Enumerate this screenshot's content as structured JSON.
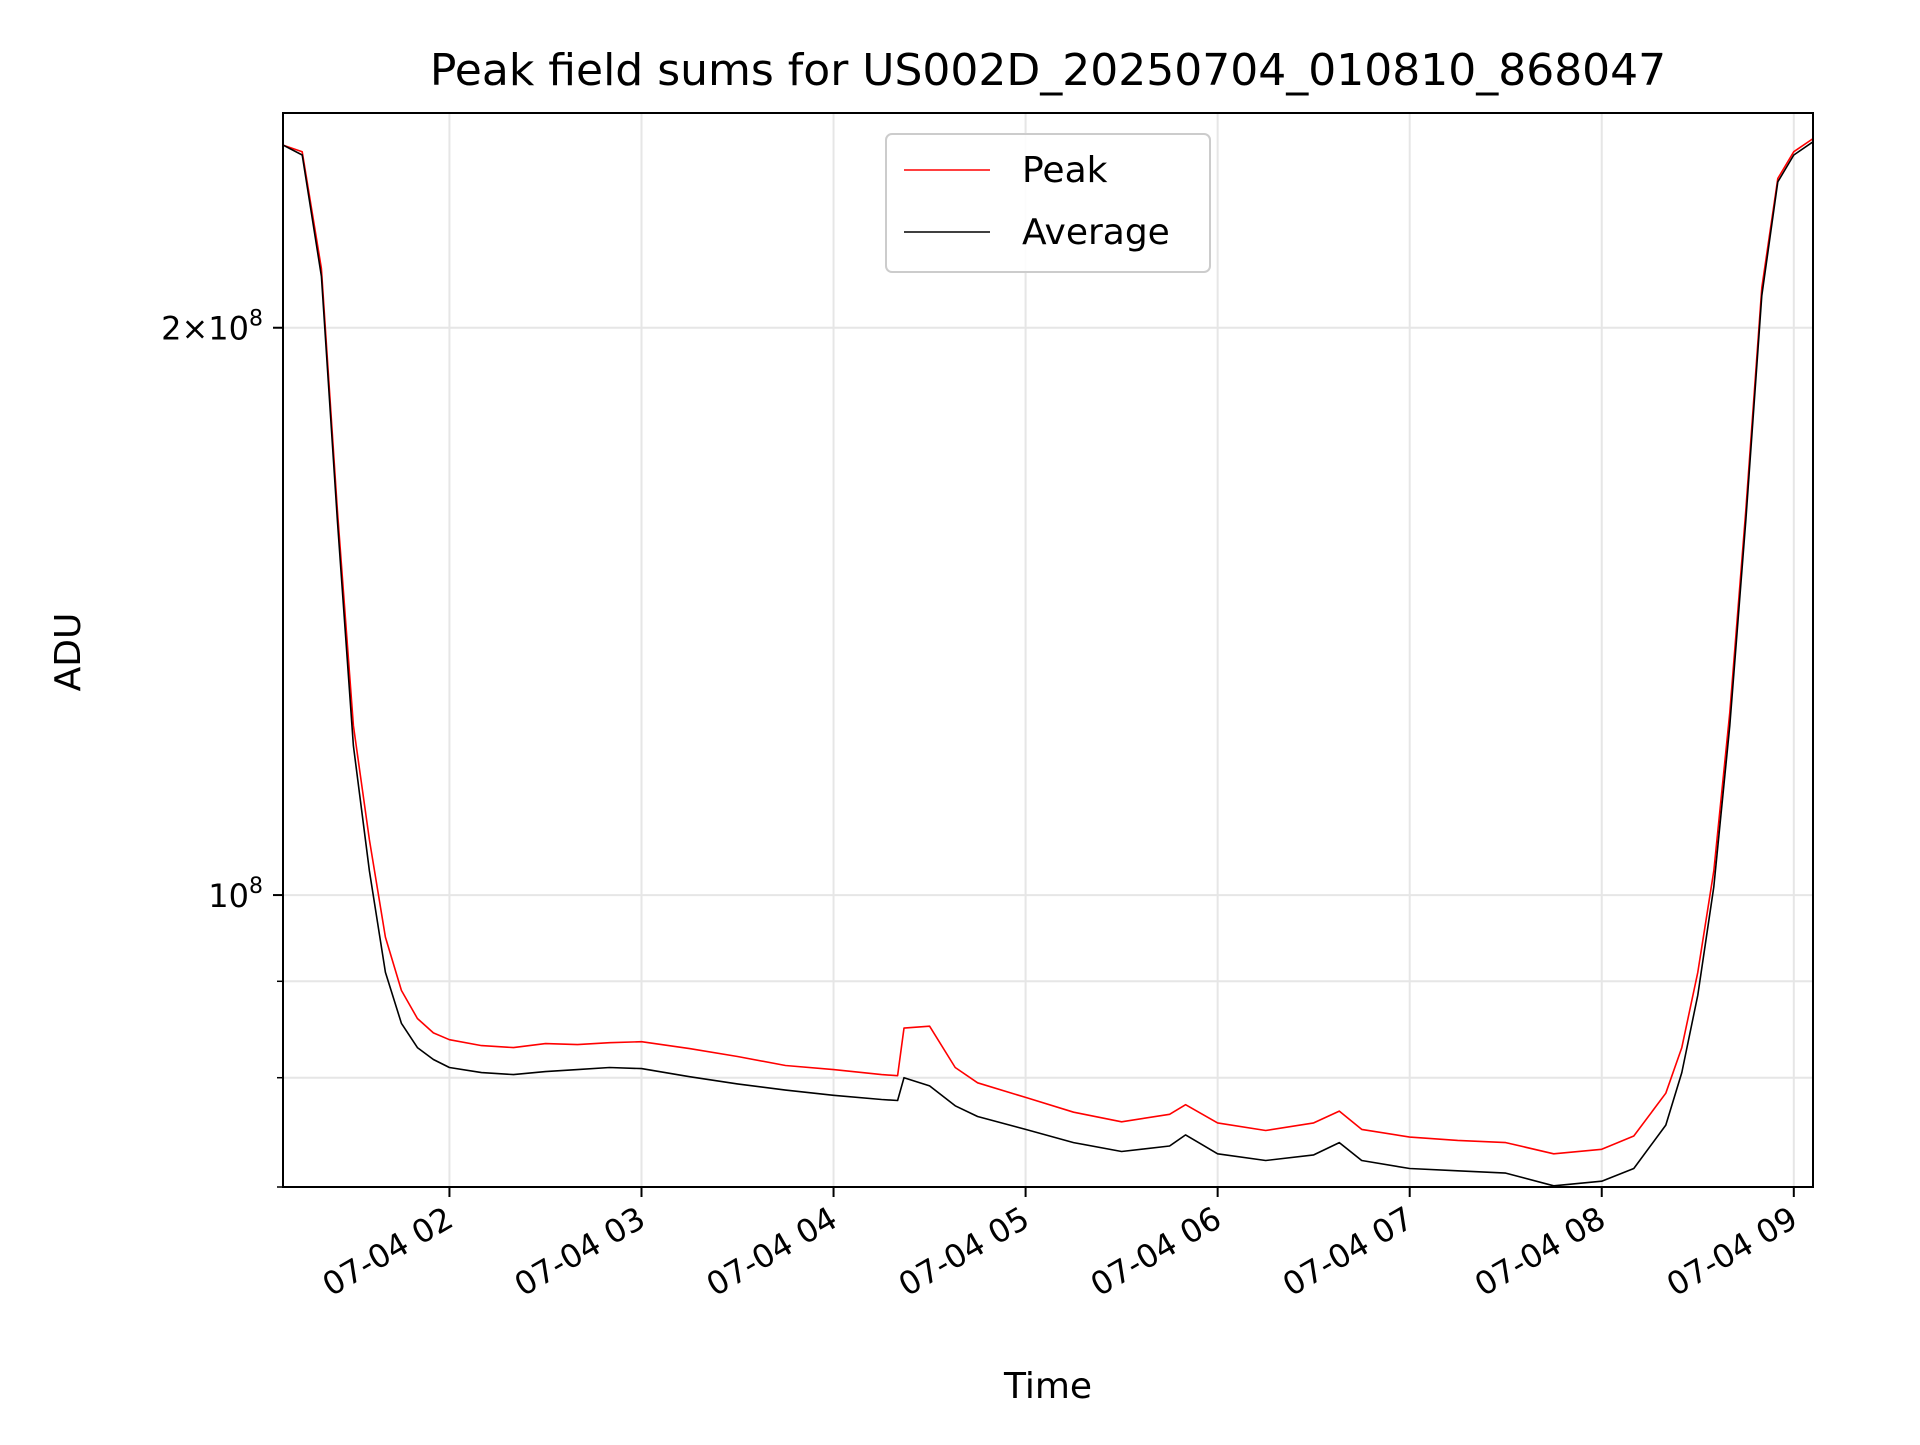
{
  "chart_data": {
    "type": "line",
    "title": "Peak field sums for US002D_20250704_010810_868047",
    "xlabel": "Time",
    "ylabel": "ADU",
    "y_scale": "log",
    "xlim": [
      "07-04 01:08",
      "07-04 09:06"
    ],
    "ylim": [
      70000000,
      260000000
    ],
    "x_ticks": [
      "07-04 02",
      "07-04 03",
      "07-04 04",
      "07-04 05",
      "07-04 06",
      "07-04 07",
      "07-04 08",
      "07-04 09"
    ],
    "y_major_ticks": [
      {
        "value": 100000000,
        "mantissa": "",
        "exponent": "8"
      },
      {
        "value": 200000000,
        "mantissa": "2×",
        "exponent": "8"
      }
    ],
    "grid": true,
    "legend": {
      "position": "top-center",
      "entries": [
        "Peak",
        "Average"
      ]
    },
    "series": [
      {
        "name": "Peak",
        "color": "#ff0000",
        "x": [
          "07-04 01:08",
          "07-04 01:14",
          "07-04 01:20",
          "07-04 01:25",
          "07-04 01:30",
          "07-04 01:35",
          "07-04 01:40",
          "07-04 01:45",
          "07-04 01:50",
          "07-04 01:55",
          "07-04 02:00",
          "07-04 02:10",
          "07-04 02:20",
          "07-04 02:30",
          "07-04 02:40",
          "07-04 02:50",
          "07-04 03:00",
          "07-04 03:15",
          "07-04 03:30",
          "07-04 03:45",
          "07-04 04:00",
          "07-04 04:15",
          "07-04 04:20",
          "07-04 04:22",
          "07-04 04:30",
          "07-04 04:38",
          "07-04 04:45",
          "07-04 05:00",
          "07-04 05:15",
          "07-04 05:30",
          "07-04 05:45",
          "07-04 05:50",
          "07-04 06:00",
          "07-04 06:15",
          "07-04 06:30",
          "07-04 06:38",
          "07-04 06:45",
          "07-04 07:00",
          "07-04 07:15",
          "07-04 07:30",
          "07-04 07:45",
          "07-04 08:00",
          "07-04 08:10",
          "07-04 08:20",
          "07-04 08:25",
          "07-04 08:30",
          "07-04 08:35",
          "07-04 08:40",
          "07-04 08:45",
          "07-04 08:50",
          "07-04 08:55",
          "07-04 09:00",
          "07-04 09:06"
        ],
        "y": [
          250000000,
          248000000,
          215000000,
          160000000,
          123000000,
          107000000,
          95000000,
          89000000,
          86000000,
          84500000,
          83800000,
          83200000,
          83000000,
          83400000,
          83300000,
          83500000,
          83600000,
          82900000,
          82100000,
          81200000,
          80800000,
          80300000,
          80200000,
          85000000,
          85200000,
          81000000,
          79500000,
          78100000,
          76700000,
          75800000,
          76500000,
          77400000,
          75700000,
          75000000,
          75700000,
          76800000,
          75100000,
          74400000,
          74100000,
          73900000,
          72900000,
          73300000,
          74500000,
          78500000,
          83000000,
          91000000,
          103000000,
          125000000,
          160000000,
          210000000,
          240000000,
          248000000,
          252000000
        ]
      },
      {
        "name": "Average",
        "color": "#000000",
        "x": [
          "07-04 01:08",
          "07-04 01:14",
          "07-04 01:20",
          "07-04 01:25",
          "07-04 01:30",
          "07-04 01:35",
          "07-04 01:40",
          "07-04 01:45",
          "07-04 01:50",
          "07-04 01:55",
          "07-04 02:00",
          "07-04 02:10",
          "07-04 02:20",
          "07-04 02:30",
          "07-04 02:40",
          "07-04 02:50",
          "07-04 03:00",
          "07-04 03:15",
          "07-04 03:30",
          "07-04 03:45",
          "07-04 04:00",
          "07-04 04:15",
          "07-04 04:20",
          "07-04 04:22",
          "07-04 04:30",
          "07-04 04:38",
          "07-04 04:45",
          "07-04 05:00",
          "07-04 05:15",
          "07-04 05:30",
          "07-04 05:45",
          "07-04 05:50",
          "07-04 06:00",
          "07-04 06:15",
          "07-04 06:30",
          "07-04 06:38",
          "07-04 06:45",
          "07-04 07:00",
          "07-04 07:15",
          "07-04 07:30",
          "07-04 07:45",
          "07-04 08:00",
          "07-04 08:10",
          "07-04 08:20",
          "07-04 08:25",
          "07-04 08:30",
          "07-04 08:35",
          "07-04 08:40",
          "07-04 08:45",
          "07-04 08:50",
          "07-04 08:55",
          "07-04 09:00",
          "07-04 09:06"
        ],
        "y": [
          250000000,
          247000000,
          213000000,
          158000000,
          120000000,
          103000000,
          91000000,
          85500000,
          83000000,
          81800000,
          81000000,
          80500000,
          80300000,
          80600000,
          80800000,
          81000000,
          80900000,
          80100000,
          79400000,
          78800000,
          78300000,
          77900000,
          77800000,
          80000000,
          79200000,
          77300000,
          76300000,
          75100000,
          73900000,
          73100000,
          73600000,
          74600000,
          72900000,
          72300000,
          72800000,
          73900000,
          72300000,
          71600000,
          71400000,
          71200000,
          70100000,
          70500000,
          71600000,
          75500000,
          80500000,
          88500000,
          101000000,
          123000000,
          158000000,
          208000000,
          239000000,
          247000000,
          251000000
        ]
      }
    ]
  }
}
